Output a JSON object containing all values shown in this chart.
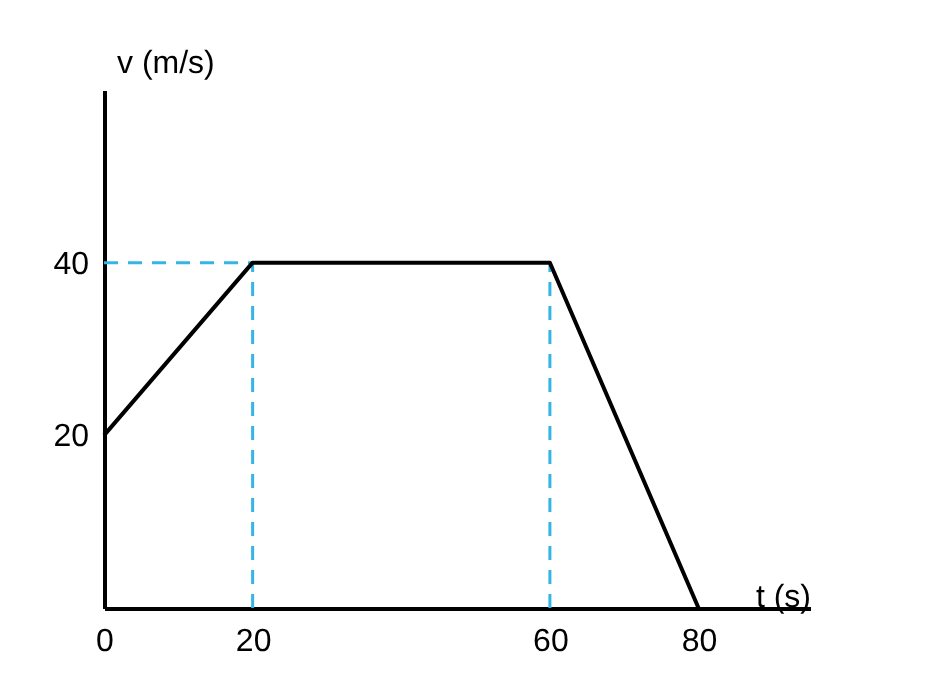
{
  "chart_data": {
    "type": "line",
    "xlabel": "t (s)",
    "ylabel": "v (m/s)",
    "x": [
      0,
      20,
      60,
      80
    ],
    "values": [
      20,
      40,
      40,
      0
    ],
    "color": "#000000",
    "line_style": "solid",
    "xlim": [
      0,
      95
    ],
    "ylim": [
      0,
      60
    ],
    "xticks": [
      0,
      20,
      60,
      80
    ],
    "yticks": [
      20,
      40
    ],
    "ref_lines": [
      {
        "axis": "y",
        "value": 40,
        "color": "#33b5e5",
        "line_style": "dashed"
      },
      {
        "axis": "x",
        "value": 20,
        "color": "#33b5e5",
        "line_style": "dashed"
      },
      {
        "axis": "x",
        "value": 60,
        "color": "#33b5e5",
        "line_style": "dashed"
      }
    ]
  }
}
